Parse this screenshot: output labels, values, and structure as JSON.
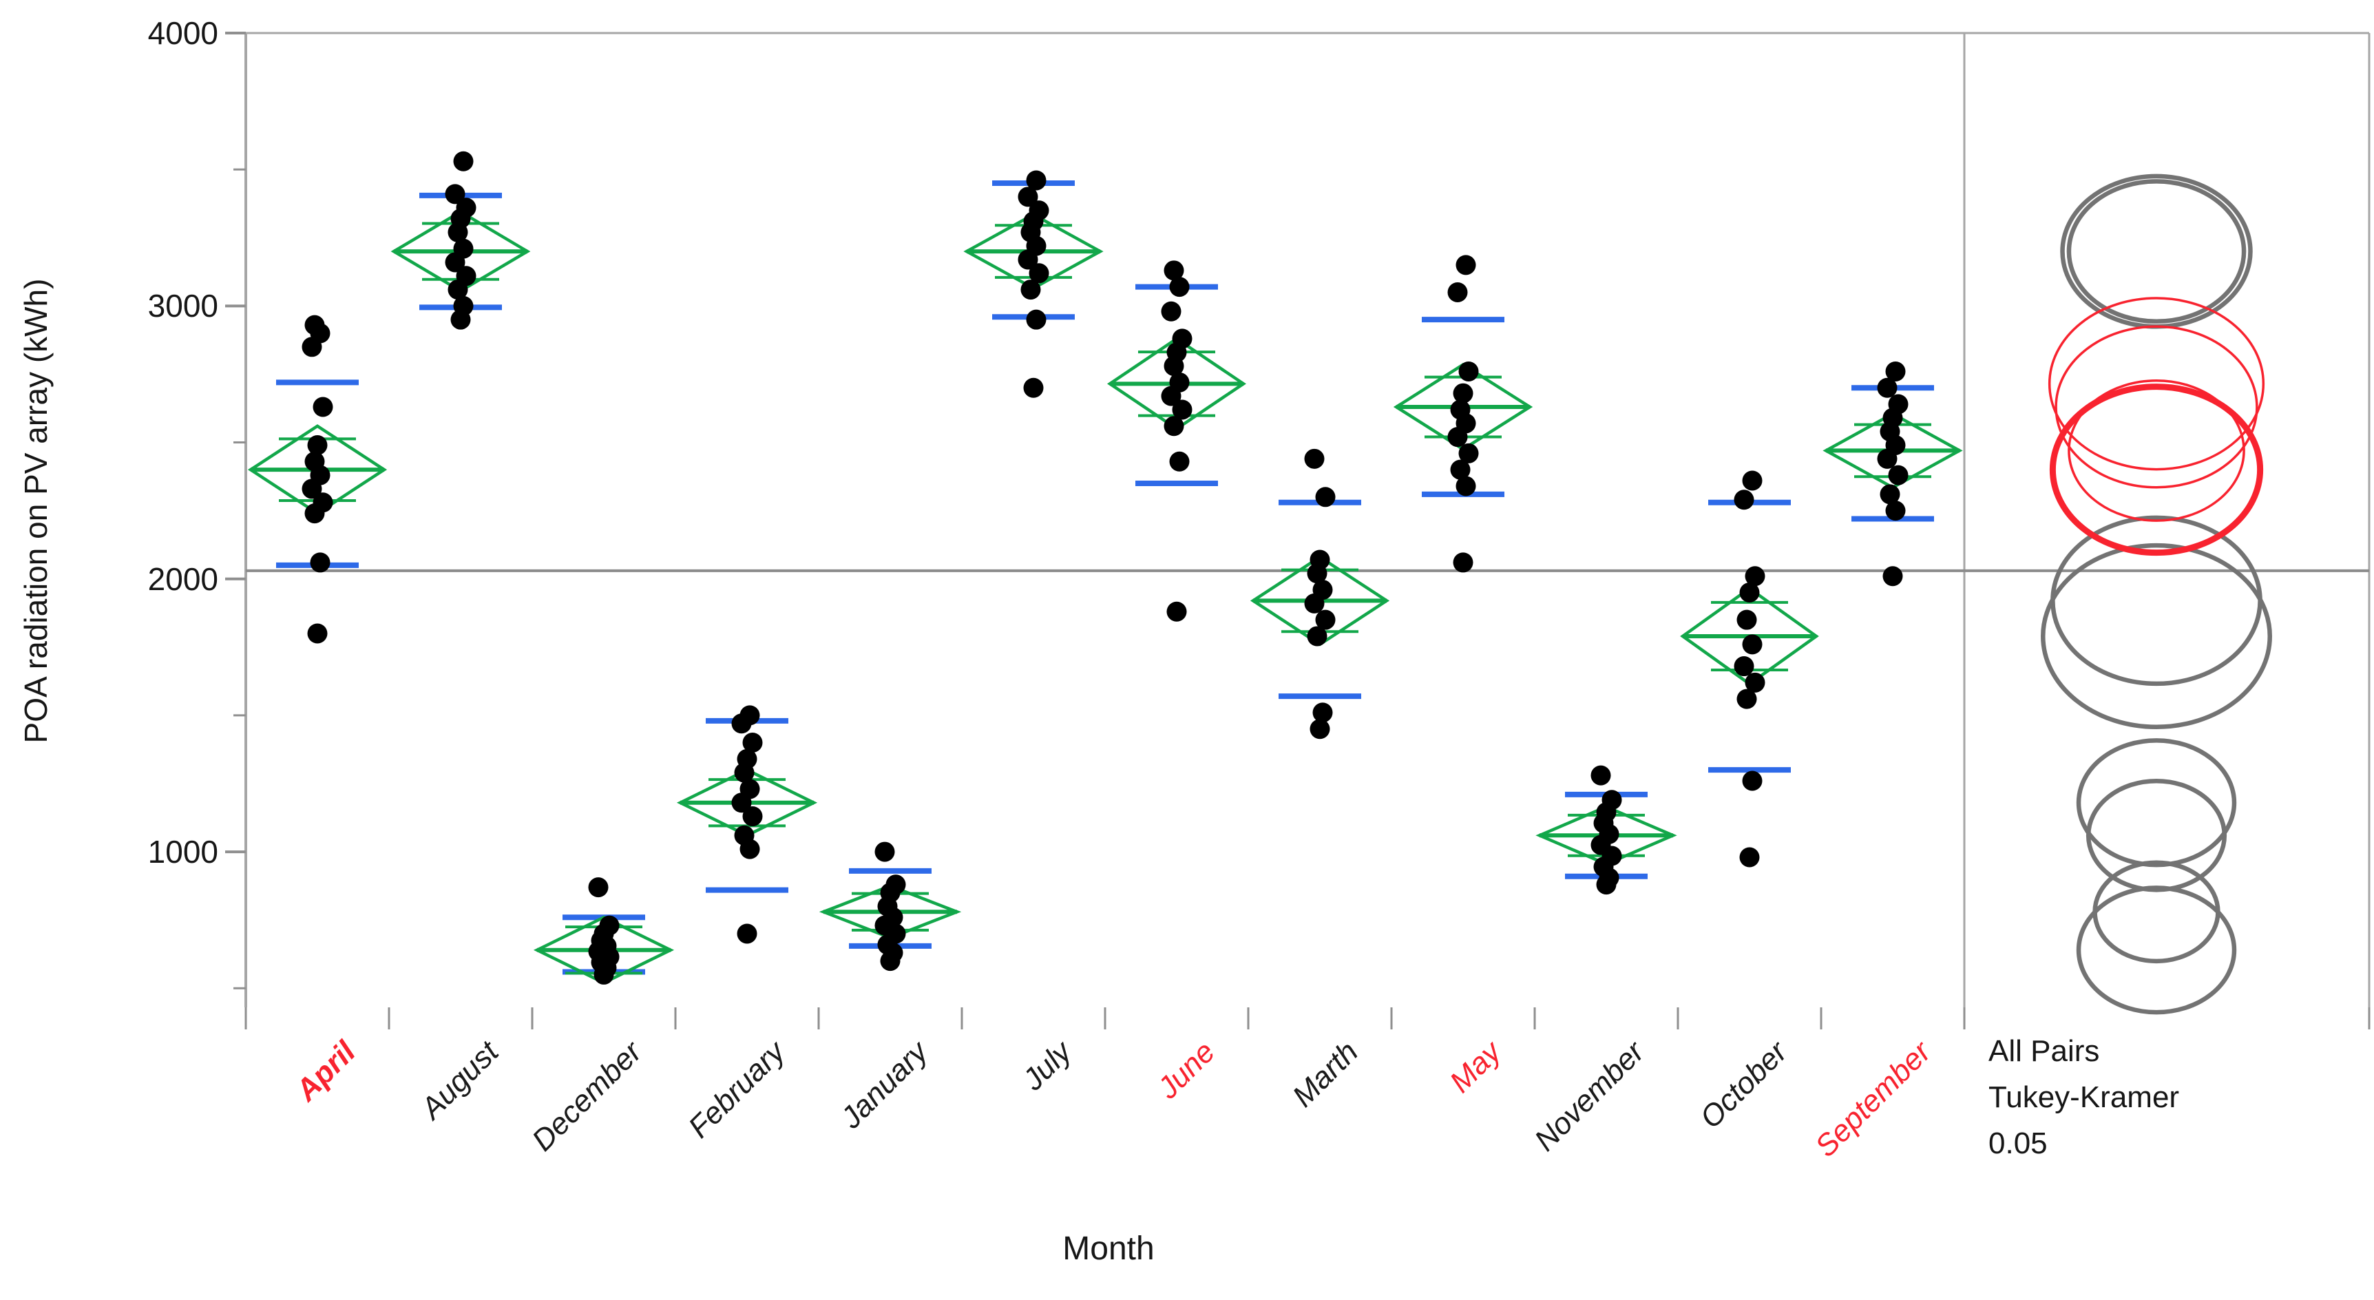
{
  "chart_data": {
    "type": "scatter",
    "subtype": "oneway-anova-means-diamonds-with-comparison-circles",
    "title": "",
    "xlabel": "Month",
    "ylabel": "POA radiation on PV array (kWh)",
    "ylim": [
      430,
      4000
    ],
    "y_major_ticks": [
      1000,
      2000,
      3000,
      4000
    ],
    "y_minor_ticks": [
      500,
      1500,
      2500,
      3500
    ],
    "grid": false,
    "grand_mean_line": 2030,
    "legend_position": "right-panel-below-axis",
    "months": [
      {
        "label": "April",
        "label_color": "red",
        "selected": true,
        "circle_color": "red",
        "circle_thick": true,
        "mean": 2400,
        "ci_half": 160,
        "sd_lines": [
          2050,
          2720
        ],
        "points": [
          1800,
          2060,
          2240,
          2280,
          2330,
          2380,
          2430,
          2490,
          2630,
          2850,
          2900,
          2930
        ]
      },
      {
        "label": "August",
        "label_color": "black",
        "selected": false,
        "circle_color": "gray",
        "circle_thick": false,
        "mean": 3200,
        "ci_half": 145,
        "sd_lines": [
          2995,
          3405
        ],
        "points": [
          2950,
          3000,
          3060,
          3110,
          3160,
          3210,
          3270,
          3320,
          3360,
          3410,
          3530
        ]
      },
      {
        "label": "December",
        "label_color": "black",
        "selected": false,
        "circle_color": "gray",
        "circle_thick": false,
        "mean": 640,
        "ci_half": 120,
        "sd_lines": [
          560,
          760
        ],
        "points": [
          550,
          575,
          595,
          615,
          635,
          655,
          675,
          700,
          730,
          870
        ]
      },
      {
        "label": "February",
        "label_color": "black",
        "selected": false,
        "circle_color": "gray",
        "circle_thick": false,
        "mean": 1180,
        "ci_half": 120,
        "sd_lines": [
          860,
          1480
        ],
        "points": [
          700,
          1010,
          1060,
          1130,
          1180,
          1230,
          1290,
          1340,
          1400,
          1470,
          1500
        ]
      },
      {
        "label": "January",
        "label_color": "black",
        "selected": false,
        "circle_color": "gray",
        "circle_thick": false,
        "mean": 780,
        "ci_half": 95,
        "sd_lines": [
          655,
          930
        ],
        "points": [
          600,
          630,
          660,
          700,
          730,
          760,
          800,
          850,
          880,
          1000
        ]
      },
      {
        "label": "July",
        "label_color": "black",
        "selected": false,
        "circle_color": "gray",
        "circle_thick": false,
        "mean": 3200,
        "ci_half": 135,
        "sd_lines": [
          2960,
          3450
        ],
        "points": [
          2700,
          2950,
          3060,
          3120,
          3170,
          3220,
          3270,
          3310,
          3350,
          3400,
          3460
        ]
      },
      {
        "label": "June",
        "label_color": "red",
        "selected": false,
        "circle_color": "red",
        "circle_thick": false,
        "mean": 2715,
        "ci_half": 165,
        "sd_lines": [
          2350,
          3070
        ],
        "points": [
          1880,
          2430,
          2560,
          2620,
          2670,
          2720,
          2780,
          2830,
          2880,
          2980,
          3070,
          3130
        ]
      },
      {
        "label": "Marth",
        "label_color": "black",
        "selected": false,
        "circle_color": "gray",
        "circle_thick": false,
        "mean": 1920,
        "ci_half": 160,
        "sd_lines": [
          1570,
          2280
        ],
        "points": [
          1450,
          1510,
          1790,
          1850,
          1910,
          1960,
          2020,
          2070,
          2300,
          2440
        ]
      },
      {
        "label": "May",
        "label_color": "red",
        "selected": false,
        "circle_color": "red",
        "circle_thick": false,
        "mean": 2630,
        "ci_half": 155,
        "sd_lines": [
          2310,
          2950
        ],
        "points": [
          2060,
          2340,
          2400,
          2460,
          2520,
          2570,
          2620,
          2680,
          2760,
          3050,
          3150
        ]
      },
      {
        "label": "November",
        "label_color": "black",
        "selected": false,
        "circle_color": "gray",
        "circle_thick": false,
        "mean": 1060,
        "ci_half": 105,
        "sd_lines": [
          910,
          1210
        ],
        "points": [
          880,
          905,
          945,
          985,
          1025,
          1065,
          1105,
          1145,
          1190,
          1280
        ]
      },
      {
        "label": "October",
        "label_color": "black",
        "selected": false,
        "circle_color": "gray",
        "circle_thick": false,
        "mean": 1790,
        "ci_half": 175,
        "sd_lines": [
          1300,
          2280
        ],
        "points": [
          980,
          1260,
          1560,
          1620,
          1680,
          1760,
          1850,
          1950,
          2010,
          2290,
          2360
        ]
      },
      {
        "label": "September",
        "label_color": "red",
        "selected": false,
        "circle_color": "red",
        "circle_thick": false,
        "mean": 2470,
        "ci_half": 135,
        "sd_lines": [
          2220,
          2700
        ],
        "points": [
          2010,
          2250,
          2310,
          2380,
          2440,
          2490,
          2540,
          2590,
          2640,
          2700,
          2760
        ]
      }
    ]
  },
  "axes": {
    "x_title": "Month",
    "y_title": "POA radiation on PV array (kWh)",
    "y_tick_labels": [
      "4000",
      "3000",
      "2000",
      "1000"
    ]
  },
  "comparison": {
    "method_lines": [
      "All Pairs",
      "Tukey-Kramer",
      "0.05"
    ],
    "circle_radius_factor": 1.9,
    "circle_aspect": 0.8
  },
  "colors": {
    "diamond_green": "#12a74a",
    "std_dev_blue": "#2e6ae8",
    "highlight_red": "#f8232f",
    "circle_gray": "#737373",
    "frame_gray": "#a6a6a6",
    "grand_mean_gray": "#8c8c8c",
    "dot_black": "#000000",
    "text": "#161616"
  }
}
